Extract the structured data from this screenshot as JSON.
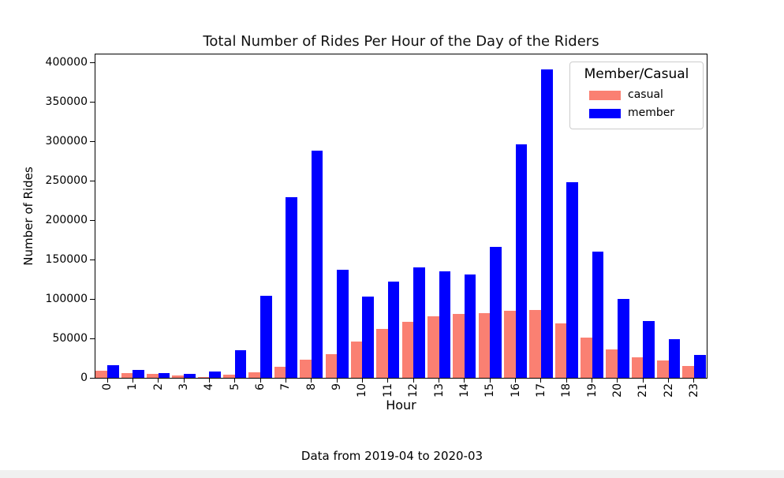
{
  "figure": {
    "title": "Total Number of Rides Per Hour of the Day of the Riders",
    "caption": "Data from 2019-04 to 2020-03"
  },
  "axes": {
    "xlabel": "Hour",
    "ylabel": "Number of Rides"
  },
  "legend": {
    "title": "Member/Casual",
    "items": [
      {
        "label": "casual",
        "color": "#FA8072"
      },
      {
        "label": "member",
        "color": "#0000FF"
      }
    ]
  },
  "chart_data": {
    "type": "bar",
    "title": "Total Number of Rides Per Hour of the Day of the Riders",
    "xlabel": "Hour",
    "ylabel": "Number of Rides",
    "categories": [
      "0",
      "1",
      "2",
      "3",
      "4",
      "5",
      "6",
      "7",
      "8",
      "9",
      "10",
      "11",
      "12",
      "13",
      "14",
      "15",
      "16",
      "17",
      "18",
      "19",
      "20",
      "21",
      "22",
      "23"
    ],
    "series": [
      {
        "name": "casual",
        "color": "#FA8072",
        "values": [
          9000,
          6500,
          4700,
          3000,
          1500,
          4300,
          7500,
          14500,
          23000,
          30000,
          46000,
          62000,
          71000,
          78000,
          81000,
          82500,
          85500,
          86500,
          69500,
          51500,
          36000,
          26000,
          22000,
          15000
        ]
      },
      {
        "name": "member",
        "color": "#0000FF",
        "values": [
          16000,
          10500,
          6000,
          5300,
          8000,
          35000,
          104000,
          229500,
          288000,
          137000,
          103000,
          122000,
          140000,
          135000,
          131000,
          166000,
          296000,
          391000,
          248000,
          160000,
          100000,
          72000,
          49000,
          29500
        ]
      }
    ],
    "ylim": [
      0,
      400000
    ],
    "yticks": [
      0,
      50000,
      100000,
      150000,
      200000,
      250000,
      300000,
      350000,
      400000
    ],
    "grid": false,
    "legend_position": "upper right",
    "legend_title": "Member/Casual",
    "annotation": "Data from 2019-04 to 2020-03"
  },
  "colors": {
    "background": "#ffffff",
    "bottom_strip": "#f0f0f0",
    "spine": "#000000"
  }
}
